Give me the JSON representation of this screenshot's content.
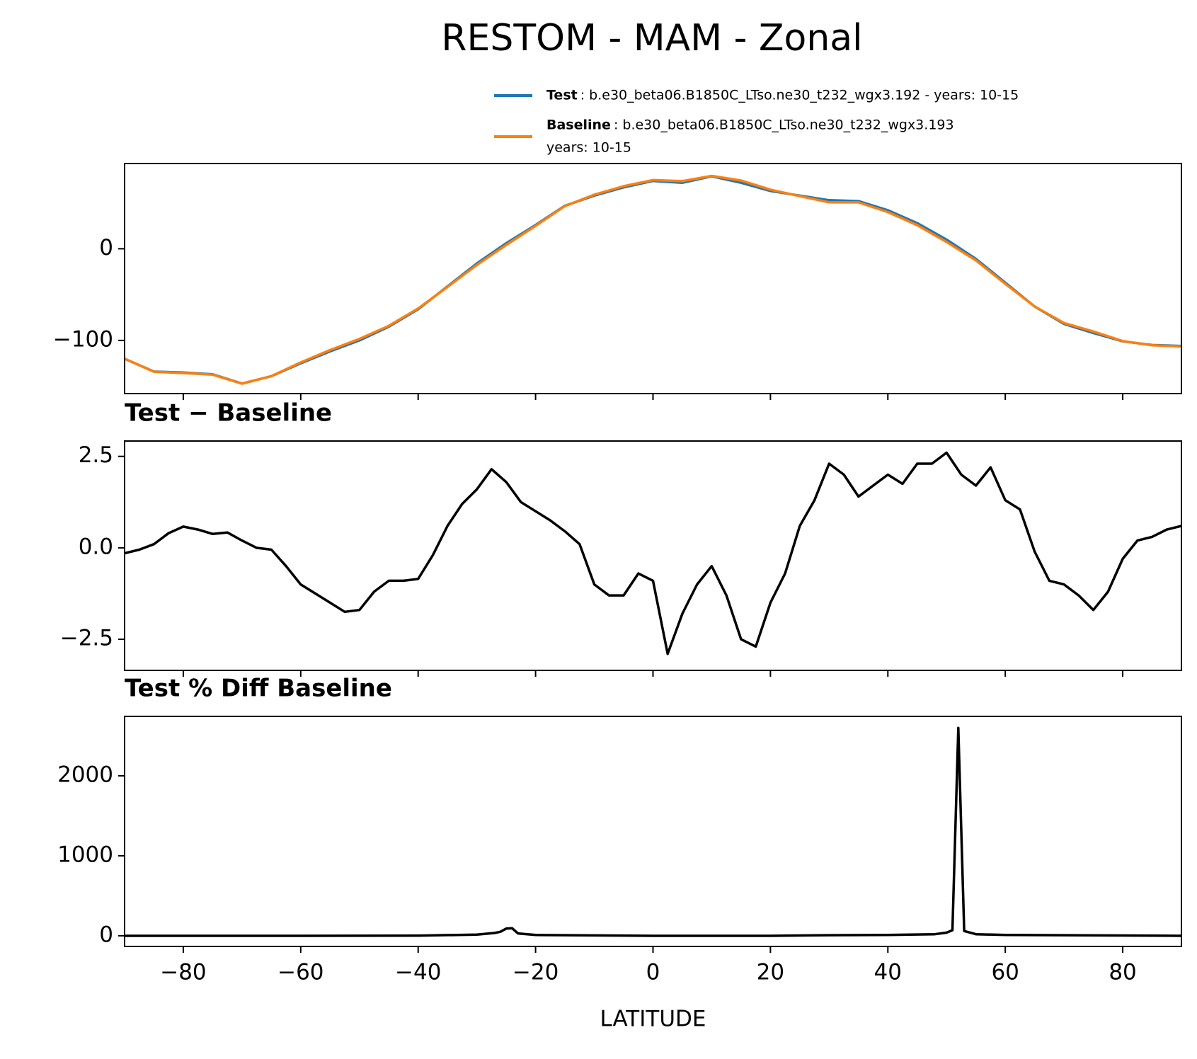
{
  "chart_data": [
    {
      "type": "line",
      "title": "RESTOM - MAM - Zonal",
      "x": [
        -90,
        -85,
        -80,
        -75,
        -70,
        -65,
        -60,
        -55,
        -50,
        -45,
        -40,
        -35,
        -30,
        -25,
        -20,
        -15,
        -10,
        -5,
        0,
        5,
        10,
        15,
        20,
        25,
        30,
        35,
        40,
        45,
        50,
        55,
        60,
        65,
        70,
        75,
        80,
        85,
        90
      ],
      "series": [
        {
          "name": "Test",
          "description": [
            ": b.e30_beta06.B1850C_LTso.ne30_t232_wgx3.192 - years: 10-15"
          ],
          "color": "#1f77b4",
          "values": [
            -120,
            -134,
            -135,
            -137,
            -147,
            -139,
            -125,
            -112,
            -100,
            -85,
            -66,
            -41,
            -16,
            6,
            26,
            47,
            58,
            67,
            74,
            72,
            79,
            72,
            63,
            58,
            53,
            52,
            42,
            28,
            10,
            -11,
            -37,
            -63,
            -82,
            -92,
            -101,
            -105,
            -106
          ]
        },
        {
          "name": "Baseline",
          "description": [
            ": b.e30_beta06.B1850C_LTso.ne30_t232_wgx3.193",
            "years: 10-15"
          ],
          "color": "#ff7f0e",
          "values": [
            -119.9,
            -134.1,
            -135.6,
            -137.4,
            -147.2,
            -138.9,
            -124,
            -110.5,
            -98.3,
            -84.1,
            -65.2,
            -41.6,
            -17.6,
            4.2,
            25,
            46.6,
            59,
            68.3,
            74.9,
            73.8,
            79.5,
            74.5,
            64.5,
            57.4,
            50.7,
            50.6,
            40,
            25.7,
            7.4,
            -12.7,
            -38.3,
            -62.9,
            -81,
            -90.3,
            -100.7,
            -105.3,
            -106.6
          ]
        }
      ],
      "xlim": [
        -90,
        90
      ],
      "xticks": [
        -80,
        -60,
        -40,
        -20,
        0,
        20,
        40,
        60,
        80
      ],
      "ylim": [
        -158,
        93
      ],
      "yticks": [
        0,
        {
          "value": -100,
          "label": "−100"
        }
      ]
    },
    {
      "type": "line",
      "title": "Test − Baseline",
      "x": [
        -90,
        -87.5,
        -85,
        -82.5,
        -80,
        -77.5,
        -75,
        -72.5,
        -70,
        -67.5,
        -65,
        -62.5,
        -60,
        -57.5,
        -55,
        -52.5,
        -50,
        -47.5,
        -45,
        -42.5,
        -40,
        -37.5,
        -35,
        -32.5,
        -30,
        -27.5,
        -25,
        -22.5,
        -20,
        -17.5,
        -15,
        -12.5,
        -10,
        -7.5,
        -5,
        -2.5,
        0,
        2.5,
        5,
        7.5,
        10,
        12.5,
        15,
        17.5,
        20,
        22.5,
        25,
        27.5,
        30,
        32.5,
        35,
        37.5,
        40,
        42.5,
        45,
        47.5,
        50,
        52.5,
        55,
        57.5,
        60,
        62.5,
        65,
        67.5,
        70,
        72.5,
        75,
        77.5,
        80,
        82.5,
        85,
        87.5,
        90
      ],
      "series": [
        {
          "color": "#000000",
          "values": [
            -0.15,
            -0.05,
            0.1,
            0.4,
            0.58,
            0.5,
            0.38,
            0.42,
            0.2,
            0.0,
            -0.05,
            -0.5,
            -1.0,
            -1.25,
            -1.5,
            -1.75,
            -1.7,
            -1.2,
            -0.9,
            -0.9,
            -0.85,
            -0.2,
            0.6,
            1.2,
            1.6,
            2.15,
            1.8,
            1.25,
            1.0,
            0.75,
            0.45,
            0.1,
            -1.0,
            -1.3,
            -1.3,
            -0.7,
            -0.9,
            -2.9,
            -1.8,
            -1.0,
            -0.5,
            -1.3,
            -2.5,
            -2.7,
            -1.5,
            -0.7,
            0.6,
            1.3,
            2.3,
            2.0,
            1.4,
            1.7,
            2.0,
            1.75,
            2.3,
            2.3,
            2.6,
            2.0,
            1.7,
            2.2,
            1.3,
            1.05,
            -0.1,
            -0.9,
            -1.0,
            -1.3,
            -1.7,
            -1.2,
            -0.3,
            0.2,
            0.3,
            0.5,
            0.6
          ]
        }
      ],
      "xlim": [
        -90,
        90
      ],
      "xticks": [
        -80,
        -60,
        -40,
        -20,
        0,
        20,
        40,
        60,
        80
      ],
      "ylim": [
        -3.35,
        2.92
      ],
      "yticks": [
        {
          "value": -2.5,
          "label": "−2.5"
        },
        {
          "value": 0,
          "label": "0.0"
        },
        2.5
      ]
    },
    {
      "type": "line",
      "title": "Test % Diff Baseline",
      "xlabel": "LATITUDE",
      "x": [
        -90,
        -60,
        -40,
        -30,
        -27,
        -26,
        -25,
        -24,
        -23,
        -20,
        0,
        20,
        30,
        40,
        48,
        50,
        51,
        52,
        53,
        55,
        60,
        90
      ],
      "series": [
        {
          "color": "#000000",
          "values": [
            0,
            0,
            2,
            15,
            35,
            50,
            90,
            95,
            30,
            10,
            0,
            0,
            8,
            10,
            20,
            40,
            70,
            2600,
            60,
            20,
            10,
            0
          ]
        }
      ],
      "xlim": [
        -90,
        90
      ],
      "xticks": [
        {
          "value": -80,
          "label": "−80"
        },
        {
          "value": -60,
          "label": "−60"
        },
        {
          "value": -40,
          "label": "−40"
        },
        {
          "value": -20,
          "label": "−20"
        },
        0,
        20,
        40,
        60,
        80
      ],
      "ylim": [
        -133,
        2743
      ],
      "yticks": [
        0,
        1000,
        2000
      ]
    }
  ]
}
